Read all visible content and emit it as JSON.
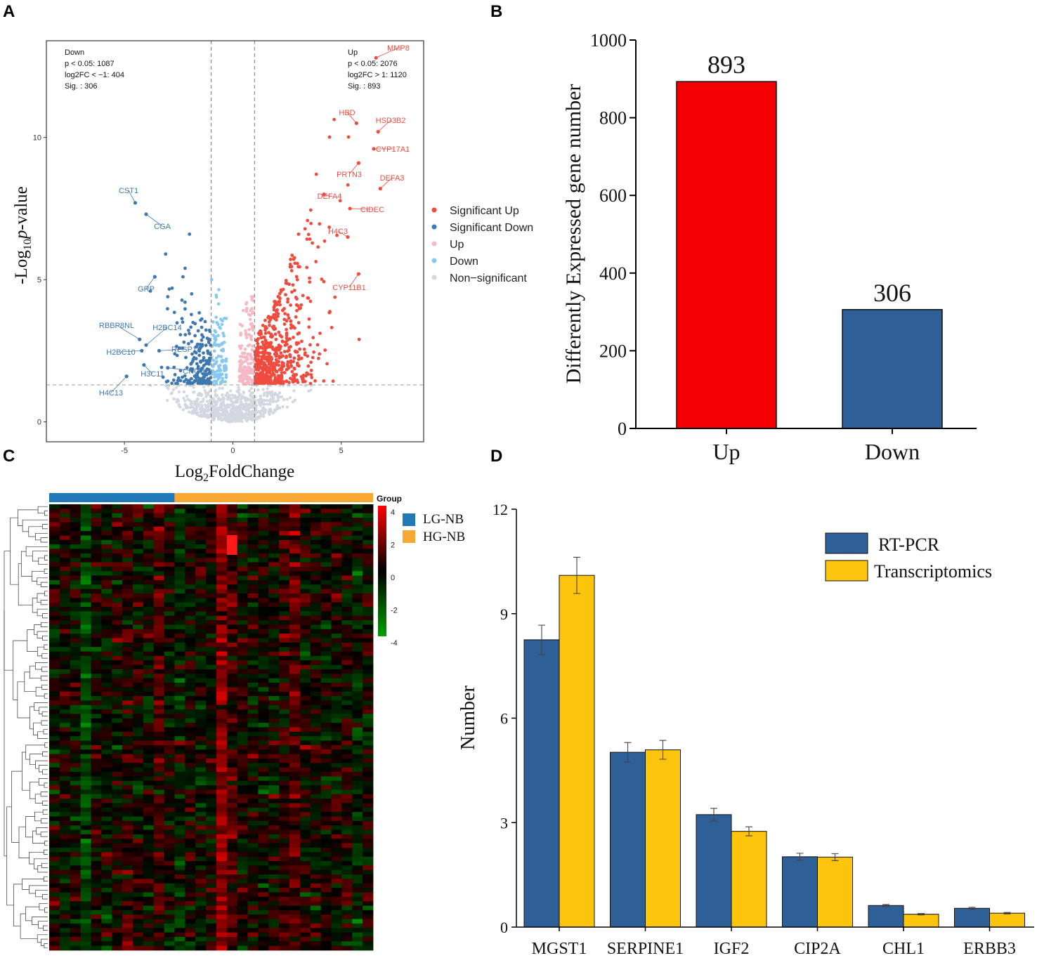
{
  "colors": {
    "sig_up": "#f04b3f",
    "sig_down": "#3d78b0",
    "up": "#f7b8c6",
    "down": "#86c8ef",
    "nonsig": "#d3d8e0",
    "bar_up": "#f30000",
    "bar_down": "#2e5f97",
    "rtpcr": "#2e5f97",
    "transcriptomics": "#fdc40d",
    "lg_nb": "#1f7ab7",
    "hg_nb": "#f7a833"
  },
  "chart_data": [
    {
      "panel": "A",
      "type": "scatter",
      "xlabel": "Log2FoldChange",
      "ylabel": "-Log10p-value",
      "xlim": [
        -8.6,
        8.8
      ],
      "ylim": [
        -0.7,
        13.4
      ],
      "xticks": [
        "-5",
        "0",
        "5"
      ],
      "yticks": [
        "0",
        "5",
        "10"
      ],
      "thresholds": {
        "log2fc": [
          -1,
          1
        ],
        "neg_log10_p": 1.3
      },
      "down_box": [
        "Down",
        "p < 0.05: 1087",
        "log2FC < −1: 404",
        "Sig. : 306"
      ],
      "up_box": [
        "Up",
        "p < 0.05: 2076",
        "log2FC > 1: 1120",
        "Sig. : 893"
      ],
      "legend": [
        "Significant Up",
        "Significant Down",
        "Up",
        "Down",
        "Non−significant"
      ],
      "labeled_genes": [
        {
          "gene": "MMP8",
          "x": 6.6,
          "y": 12.8,
          "group": "up"
        },
        {
          "gene": "HBD",
          "x": 5.7,
          "y": 10.5,
          "group": "up"
        },
        {
          "gene": "HSD3B2",
          "x": 6.7,
          "y": 10.2,
          "group": "up"
        },
        {
          "gene": "CYP17A1",
          "x": 6.5,
          "y": 9.6,
          "group": "up"
        },
        {
          "gene": "PRTN3",
          "x": 5.8,
          "y": 9.1,
          "group": "up"
        },
        {
          "gene": "DEFA3",
          "x": 6.8,
          "y": 8.2,
          "group": "up"
        },
        {
          "gene": "DEFA4",
          "x": 4.2,
          "y": 8.0,
          "group": "up"
        },
        {
          "gene": "CIDEC",
          "x": 5.4,
          "y": 7.5,
          "group": "up"
        },
        {
          "gene": "H4C3",
          "x": 5.3,
          "y": 6.5,
          "group": "up"
        },
        {
          "gene": "CYP11B1",
          "x": 5.8,
          "y": 5.2,
          "group": "up"
        },
        {
          "gene": "CST1",
          "x": -4.5,
          "y": 7.7,
          "group": "down"
        },
        {
          "gene": "CGA",
          "x": -4.0,
          "y": 7.3,
          "group": "down"
        },
        {
          "gene": "GRP",
          "x": -3.6,
          "y": 5.1,
          "group": "down"
        },
        {
          "gene": "RBBP8NL",
          "x": -4.3,
          "y": 2.9,
          "group": "down"
        },
        {
          "gene": "H2BC14",
          "x": -4.0,
          "y": 2.7,
          "group": "down"
        },
        {
          "gene": "H2BC10",
          "x": -4.2,
          "y": 2.5,
          "group": "down"
        },
        {
          "gene": "RESP18",
          "x": -3.4,
          "y": 2.5,
          "group": "down"
        },
        {
          "gene": "H3C11",
          "x": -4.1,
          "y": 2.0,
          "group": "down"
        },
        {
          "gene": "CHGB",
          "x": -3.0,
          "y": 1.9,
          "group": "down"
        },
        {
          "gene": "H4C13",
          "x": -4.9,
          "y": 1.6,
          "group": "down"
        }
      ]
    },
    {
      "panel": "B",
      "type": "bar",
      "categories": [
        "Up",
        "Down"
      ],
      "values": [
        893,
        306
      ],
      "value_labels": [
        "893",
        "306"
      ],
      "ylabel": "Differently Expressed gene number",
      "ylim": [
        0,
        1000
      ],
      "yticks": [
        "0",
        "200",
        "400",
        "600",
        "800",
        "1000"
      ]
    },
    {
      "panel": "C",
      "type": "heatmap",
      "group_title": "Group",
      "groups": [
        {
          "name": "LG-NB",
          "n": 12
        },
        {
          "name": "HG-NB",
          "n": 19
        }
      ],
      "color_scale": [
        -4,
        4
      ],
      "colorbar_ticks": [
        "4",
        "2",
        "0",
        "-2",
        "-4"
      ],
      "rows": 100,
      "columns": 31
    },
    {
      "panel": "D",
      "type": "bar",
      "categories": [
        "MGST1",
        "SERPINE1",
        "IGF2",
        "CIP2A",
        "CHL1",
        "ERBB3"
      ],
      "series": [
        {
          "name": "RT-PCR",
          "values": [
            8.25,
            5.02,
            3.23,
            2.02,
            0.62,
            0.54
          ],
          "errors": [
            0.42,
            0.28,
            0.18,
            0.1,
            0.03,
            0.03
          ]
        },
        {
          "name": "Transcriptomics",
          "values": [
            10.1,
            5.09,
            2.75,
            2.01,
            0.37,
            0.4
          ],
          "errors": [
            0.52,
            0.27,
            0.13,
            0.1,
            0.02,
            0.02
          ]
        }
      ],
      "ylabel": "Number",
      "ylim": [
        0,
        12
      ],
      "yticks": [
        "0",
        "3",
        "6",
        "9",
        "12"
      ]
    }
  ]
}
